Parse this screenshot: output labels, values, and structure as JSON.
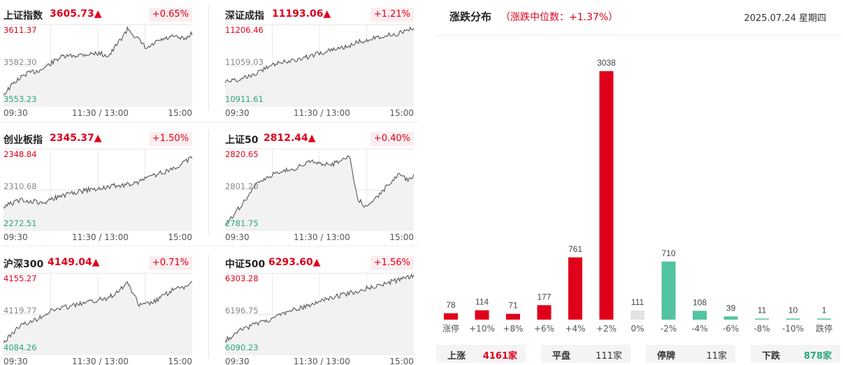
{
  "colors": {
    "up": "#e0001b",
    "down": "#52c3a1",
    "flat": "#e3e3e3",
    "pct_bg": "#fbeef0"
  },
  "indices": [
    {
      "name": "上证指数",
      "value": "3605.73▲",
      "change": "+0.65%",
      "hi": "3611.37",
      "mid": "3582.30",
      "lo": "3553.23",
      "t_start": "09:30",
      "t_mid": "11:30 / 13:00",
      "t_end": "15:00"
    },
    {
      "name": "深证成指",
      "value": "11193.06▲",
      "change": "+1.21%",
      "hi": "11206.46",
      "mid": "11059.03",
      "lo": "10911.61",
      "t_start": "09:30",
      "t_mid": "11:30 / 13:00",
      "t_end": "15:00"
    },
    {
      "name": "创业板指",
      "value": "2345.37▲",
      "change": "+1.50%",
      "hi": "2348.84",
      "mid": "2310.68",
      "lo": "2272.51",
      "t_start": "09:30",
      "t_mid": "11:30 / 13:00",
      "t_end": "15:00"
    },
    {
      "name": "上证50",
      "value": "2812.44▲",
      "change": "+0.40%",
      "hi": "2820.65",
      "mid": "2801.20",
      "lo": "2781.75",
      "t_start": "09:30",
      "t_mid": "11:30 / 13:00",
      "t_end": "15:00"
    },
    {
      "name": "沪深300",
      "value": "4149.04▲",
      "change": "+0.71%",
      "hi": "4155.27",
      "mid": "4119.77",
      "lo": "4084.26",
      "t_start": "09:30",
      "t_mid": "11:30 / 13:00",
      "t_end": "15:00"
    },
    {
      "name": "中证500",
      "value": "6293.60▲",
      "change": "+1.56%",
      "hi": "6303.28",
      "mid": "6196.75",
      "lo": "6090.23",
      "t_start": "09:30",
      "t_mid": "11:30 / 13:00",
      "t_end": "15:00"
    }
  ],
  "distribution": {
    "title": "涨跌分布",
    "subtitle": "（涨跌中位数：+1.37%）",
    "date": "2025.07.24 星期四",
    "summary": [
      {
        "label": "上涨",
        "value": "4161家",
        "tone": "up"
      },
      {
        "label": "平盘",
        "value": "111家",
        "tone": "neutral"
      },
      {
        "label": "停牌",
        "value": "11家",
        "tone": "neutral"
      },
      {
        "label": "下跌",
        "value": "878家",
        "tone": "down"
      }
    ]
  },
  "chart_data": {
    "type": "bar",
    "categories": [
      "涨停",
      "+10%",
      "+8%",
      "+6%",
      "+4%",
      "+2%",
      "0%",
      "-2%",
      "-4%",
      "-6%",
      "-8%",
      "-10%",
      "跌停"
    ],
    "values": [
      78,
      114,
      71,
      177,
      761,
      3038,
      111,
      710,
      108,
      39,
      11,
      10,
      1
    ],
    "tones": [
      "up",
      "up",
      "up",
      "up",
      "up",
      "up",
      "flat",
      "down",
      "down",
      "down",
      "down",
      "down",
      "down"
    ]
  }
}
